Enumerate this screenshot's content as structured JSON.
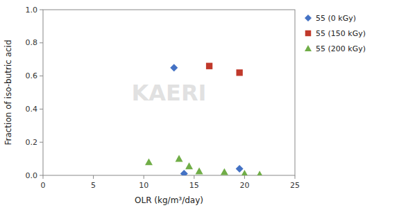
{
  "chart_data": {
    "type": "scatter",
    "x_label": "OLR (kg/m³/day)",
    "y_label": "Fraction of iso-butric acid",
    "annotations": [
      "KAERI"
    ],
    "series": [
      {
        "name": "55 (0 kGy)",
        "color": "#4472C4",
        "marker": "diamond",
        "x": [
          13.0,
          14.0,
          19.5
        ],
        "values": [
          0.65,
          0.01,
          0.04
        ]
      },
      {
        "name": "55 (150 kGy)",
        "color": "#C0392B",
        "marker": "square",
        "x": [
          16.5,
          19.5
        ],
        "values": [
          0.66,
          0.62
        ]
      },
      {
        "name": "55 (200 kGy)",
        "color": "#70AD47",
        "marker": "triangle",
        "x": [
          10.5,
          13.5,
          14.5,
          15.5,
          18.0,
          20.0,
          21.5
        ],
        "values": [
          0.08,
          0.1,
          0.055,
          0.025,
          0.02,
          0.01,
          0.005
        ]
      }
    ],
    "xlim": [
      0,
      25
    ],
    "ylim": [
      0,
      1
    ],
    "xticks": [
      0,
      5,
      10,
      15,
      20,
      25
    ],
    "yticks": [
      {
        "value": 0,
        "label": "0.0"
      },
      0.2,
      0.4,
      0.6,
      0.8,
      {
        "value": 1,
        "label": "1.0"
      }
    ],
    "grid": false,
    "legend": "right"
  }
}
